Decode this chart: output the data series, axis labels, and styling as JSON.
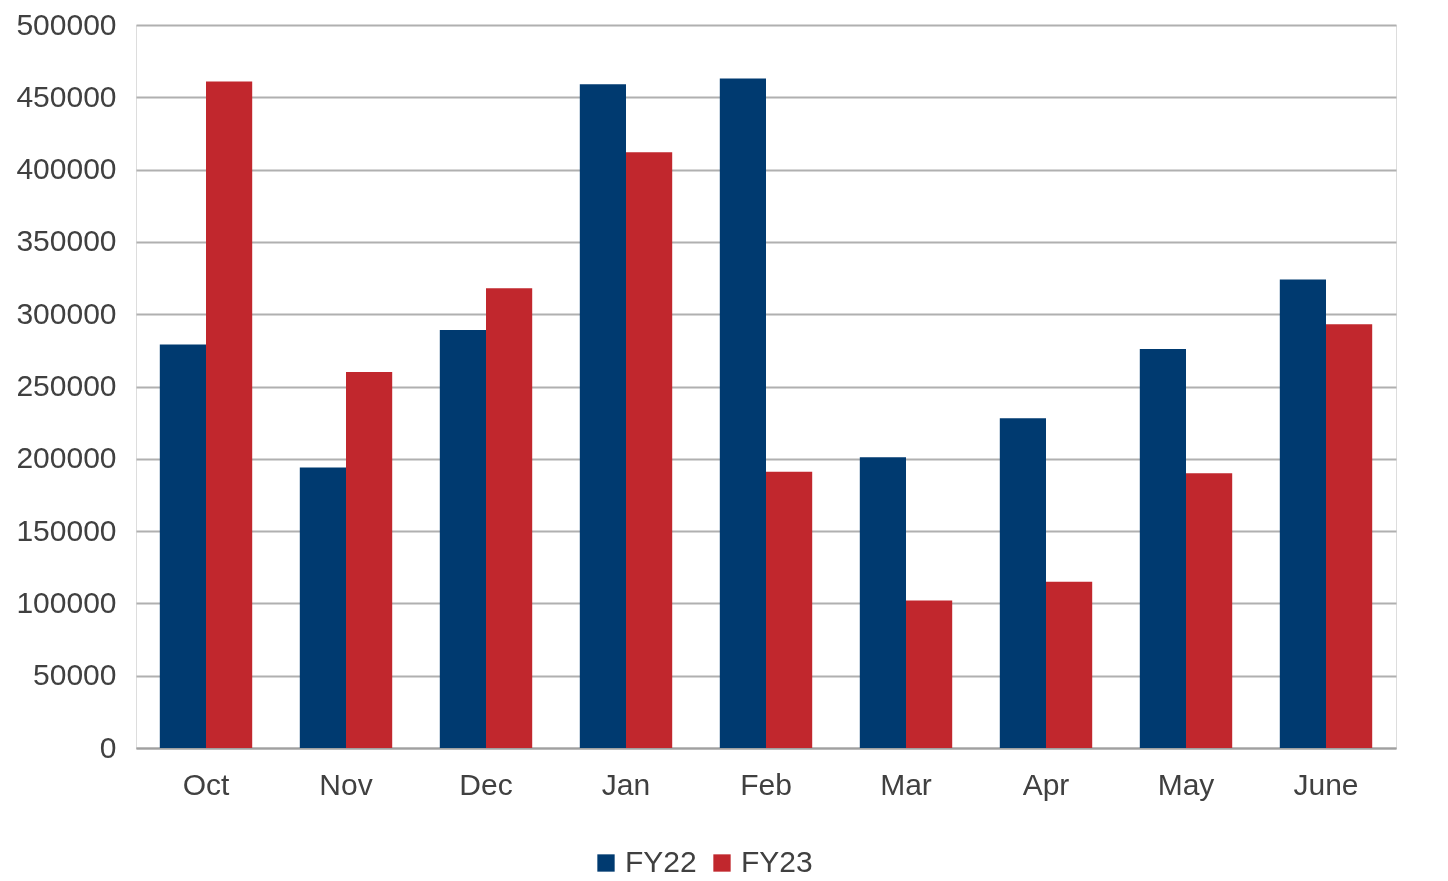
{
  "chart_data": {
    "type": "bar",
    "categories": [
      "Oct",
      "Nov",
      "Dec",
      "Jan",
      "Feb",
      "Mar",
      "Apr",
      "May",
      "June"
    ],
    "series": [
      {
        "name": "FY22",
        "color": "#003a70",
        "values": [
          279000,
          194000,
          289000,
          459000,
          463000,
          201000,
          228000,
          276000,
          324000
        ]
      },
      {
        "name": "FY23",
        "color": "#c1272d",
        "values": [
          461000,
          260000,
          318000,
          412000,
          191000,
          102000,
          115000,
          190000,
          293000
        ]
      }
    ],
    "ylim": [
      0,
      500000
    ],
    "yticks": [
      0,
      50000,
      100000,
      150000,
      200000,
      250000,
      300000,
      350000,
      400000,
      450000,
      500000
    ],
    "grid": "y",
    "legend": "bottom"
  }
}
